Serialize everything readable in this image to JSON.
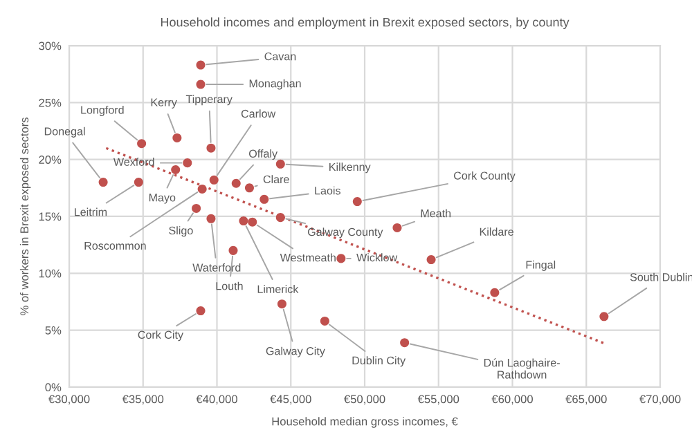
{
  "chart_data": {
    "type": "scatter",
    "title": "Household incomes and employment in Brexit exposed sectors, by county",
    "xlabel": "Household median gross incomes, €",
    "ylabel": "% of workers in Brexit exposed sectors",
    "xlim": [
      30000,
      70000
    ],
    "xticks": [
      {
        "value": 30000,
        "label": "€30,000"
      },
      {
        "value": 35000,
        "label": "€35,000"
      },
      {
        "value": 40000,
        "label": "€40,000"
      },
      {
        "value": 45000,
        "label": "€45,000"
      },
      {
        "value": 50000,
        "label": "€50,000"
      },
      {
        "value": 55000,
        "label": "€55,000"
      },
      {
        "value": 60000,
        "label": "€60,000"
      },
      {
        "value": 65000,
        "label": "€65,000"
      },
      {
        "value": 70000,
        "label": "€70,000"
      }
    ],
    "ylim": [
      0,
      30
    ],
    "yticks": [
      {
        "value": 0,
        "label": "0%"
      },
      {
        "value": 5,
        "label": "5%"
      },
      {
        "value": 10,
        "label": "10%"
      },
      {
        "value": 15,
        "label": "15%"
      },
      {
        "value": 20,
        "label": "20%"
      },
      {
        "value": 25,
        "label": "25%"
      },
      {
        "value": 30,
        "label": "30%"
      }
    ],
    "grid": true,
    "marker": "circle",
    "series": [
      {
        "color": "#c0504d",
        "x": [
          38900,
          38900,
          34900,
          37300,
          39600,
          39800,
          32300,
          38000,
          37200,
          34700,
          44300,
          41300,
          42200,
          43200,
          44300,
          39000,
          38600,
          39600,
          41100,
          41800,
          42400,
          44400,
          38900,
          47300,
          48400,
          52200,
          49500,
          54500,
          58800,
          66200,
          52700
        ],
        "values": [
          28.3,
          26.6,
          21.4,
          21.9,
          21.0,
          18.2,
          18.0,
          19.7,
          19.1,
          18.0,
          19.6,
          17.9,
          17.5,
          16.5,
          14.9,
          17.4,
          15.7,
          14.8,
          12.0,
          14.6,
          14.5,
          7.3,
          6.7,
          5.8,
          11.3,
          14.0,
          16.3,
          11.2,
          8.3,
          6.2,
          3.9
        ]
      },
      {
        "type": "line",
        "color": "#c0504d",
        "line_style": "dotted",
        "marker": "none",
        "x": [
          32500,
          66300
        ],
        "values": [
          21.0,
          3.8
        ]
      }
    ],
    "annotations": [
      {
        "text": "Cavan",
        "x": 38900,
        "y": 28.3
      },
      {
        "text": "Monaghan",
        "x": 38900,
        "y": 26.6
      },
      {
        "text": "Longford",
        "x": 34900,
        "y": 21.4
      },
      {
        "text": "Kerry",
        "x": 37300,
        "y": 21.9
      },
      {
        "text": "Tipperary",
        "x": 39600,
        "y": 21.0
      },
      {
        "text": "Carlow",
        "x": 39800,
        "y": 18.2
      },
      {
        "text": "Donegal",
        "x": 32300,
        "y": 18.0
      },
      {
        "text": "Wexford",
        "x": 38000,
        "y": 19.7
      },
      {
        "text": "Mayo",
        "x": 37200,
        "y": 19.1
      },
      {
        "text": "Leitrim",
        "x": 34700,
        "y": 18.0
      },
      {
        "text": "Kilkenny",
        "x": 44300,
        "y": 19.6
      },
      {
        "text": "Offaly",
        "x": 41300,
        "y": 17.9
      },
      {
        "text": "Clare",
        "x": 42200,
        "y": 17.5
      },
      {
        "text": "Laois",
        "x": 43200,
        "y": 16.5
      },
      {
        "text": "Galway County",
        "x": 44300,
        "y": 14.9
      },
      {
        "text": "Roscommon",
        "x": 39000,
        "y": 17.4
      },
      {
        "text": "Sligo",
        "x": 38600,
        "y": 15.7
      },
      {
        "text": "Waterford",
        "x": 39600,
        "y": 14.8
      },
      {
        "text": "Louth",
        "x": 41100,
        "y": 12.0
      },
      {
        "text": "Limerick",
        "x": 41800,
        "y": 14.6
      },
      {
        "text": "Westmeath",
        "x": 42400,
        "y": 14.5
      },
      {
        "text": "Galway City",
        "x": 44400,
        "y": 7.3
      },
      {
        "text": "Cork City",
        "x": 38900,
        "y": 6.7
      },
      {
        "text": "Dublin City",
        "x": 47300,
        "y": 5.8
      },
      {
        "text": "Wicklow",
        "x": 48400,
        "y": 11.3
      },
      {
        "text": "Meath",
        "x": 52200,
        "y": 14.0
      },
      {
        "text": "Cork County",
        "x": 49500,
        "y": 16.3
      },
      {
        "text": "Kildare",
        "x": 54500,
        "y": 11.2
      },
      {
        "text": "Fingal",
        "x": 58800,
        "y": 8.3
      },
      {
        "text": "South Dublin",
        "x": 66200,
        "y": 6.2
      },
      {
        "text": "Dún Laoghaire-\nRathdown",
        "x": 52700,
        "y": 3.9
      }
    ]
  }
}
